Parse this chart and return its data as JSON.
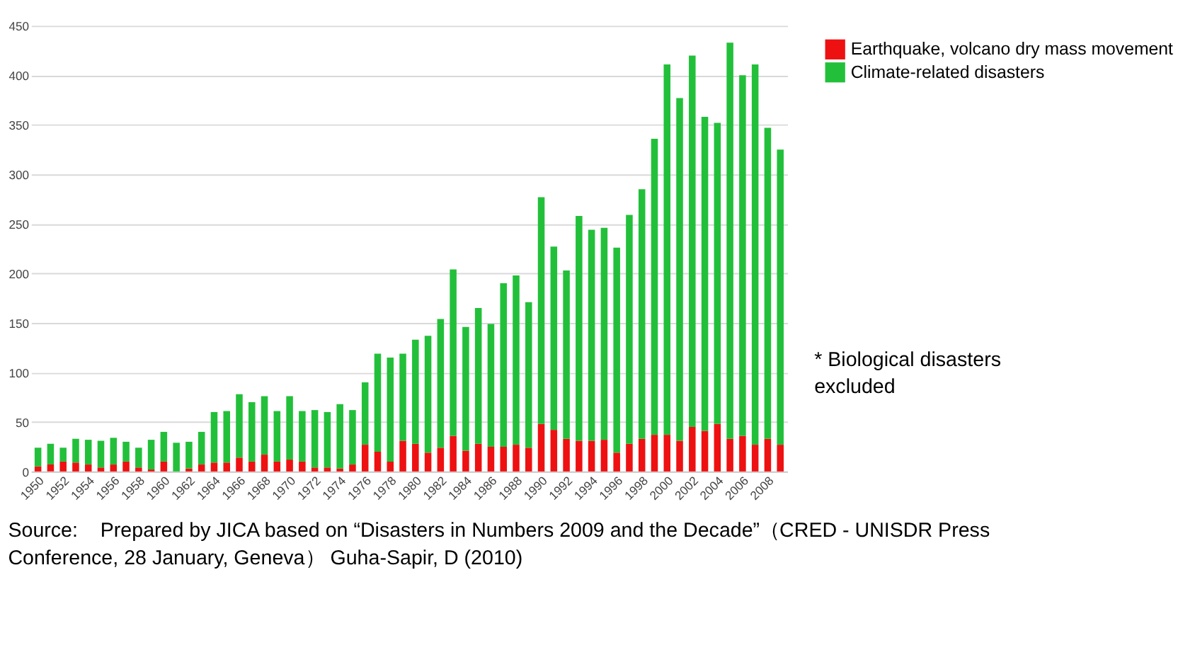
{
  "chart_data": {
    "type": "bar",
    "stacked": true,
    "categories": [
      "1950",
      null,
      "1952",
      null,
      "1954",
      null,
      "1956",
      null,
      "1958",
      null,
      "1960",
      null,
      "1962",
      null,
      "1964",
      null,
      "1966",
      null,
      "1968",
      null,
      "1970",
      null,
      "1972",
      null,
      "1974",
      null,
      "1976",
      null,
      "1978",
      null,
      "1980",
      null,
      "1982",
      null,
      "1984",
      null,
      "1986",
      null,
      "1988",
      null,
      "1990",
      null,
      "1992",
      null,
      "1994",
      null,
      "1996",
      null,
      "1998",
      null,
      "2000",
      null,
      "2002",
      null,
      "2004",
      null,
      "2006",
      null,
      "2008",
      null
    ],
    "series": [
      {
        "name": "Earthquake, volcano dry mass movement",
        "color": "#ee1111",
        "values": [
          5,
          7,
          10,
          9,
          7,
          4,
          7,
          10,
          4,
          2,
          10,
          0,
          3,
          7,
          9,
          9,
          14,
          10,
          17,
          10,
          12,
          10,
          4,
          4,
          3,
          7,
          27,
          20,
          10,
          31,
          28,
          19,
          24,
          36,
          21,
          28,
          25,
          25,
          27,
          24,
          48,
          42,
          33,
          31,
          31,
          32,
          19,
          28,
          33,
          37,
          37,
          31,
          45,
          41,
          48,
          33,
          36,
          27,
          33,
          27
        ]
      },
      {
        "name": "Climate-related disasters",
        "color": "#22c03a",
        "values": [
          19,
          21,
          14,
          24,
          25,
          27,
          27,
          20,
          20,
          30,
          30,
          29,
          27,
          33,
          51,
          52,
          64,
          60,
          59,
          51,
          64,
          51,
          58,
          56,
          65,
          55,
          63,
          99,
          105,
          88,
          105,
          118,
          130,
          168,
          125,
          137,
          124,
          165,
          171,
          147,
          229,
          185,
          170,
          227,
          213,
          214,
          207,
          231,
          252,
          299,
          374,
          346,
          375,
          317,
          304,
          400,
          364,
          384,
          314,
          298
        ]
      }
    ],
    "ylim": [
      0,
      450
    ],
    "yticks": [
      0,
      50,
      100,
      150,
      200,
      250,
      300,
      350,
      400,
      450
    ],
    "grid": "y",
    "legend": "right",
    "annotations": [
      "* Biological disasters excluded",
      "Source:    Prepared by JICA based on “Disasters in Numbers 2009 and the Decade”（CRED - UNISDR Press Conference, 28 January, Geneva） Guha-Sapir, D (2010)"
    ]
  }
}
